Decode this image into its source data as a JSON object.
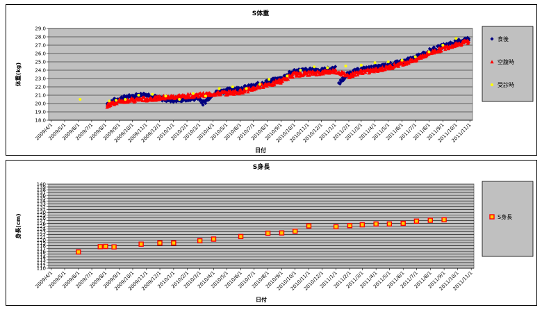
{
  "chart_data": [
    {
      "type": "scatter",
      "title": "S体重",
      "xlabel": "日付",
      "ylabel": "体重(kg)",
      "ylim": [
        18.0,
        29.0
      ],
      "yticks": [
        "18.0",
        "19.0",
        "20.0",
        "21.0",
        "22.0",
        "23.0",
        "24.0",
        "25.0",
        "26.0",
        "27.0",
        "28.0",
        "29.0"
      ],
      "xticks": [
        "2009/4/1",
        "2009/5/1",
        "2009/6/1",
        "2009/7/1",
        "2009/8/1",
        "2009/9/1",
        "2009/10/1",
        "2009/11/1",
        "2009/12/1",
        "2010/1/1",
        "2010/2/1",
        "2010/3/1",
        "2010/4/1",
        "2010/5/1",
        "2010/6/1",
        "2010/7/1",
        "2010/8/1",
        "2010/9/1",
        "2010/10/1",
        "2010/11/1",
        "2010/12/1",
        "2011/1/1",
        "2011/2/1",
        "2011/3/1",
        "2011/4/1",
        "2011/5/1",
        "2011/6/1",
        "2011/7/1",
        "2011/8/1",
        "2011/9/1",
        "2011/10/1",
        "2011/11/1"
      ],
      "grid": true,
      "legend_position": "right",
      "series": [
        {
          "name": "食後",
          "color": "#000080",
          "marker": "diamond",
          "trend": [
            [
              "2009-08-05",
              20.0
            ],
            [
              "2009-09-01",
              20.6
            ],
            [
              "2009-10-01",
              20.9
            ],
            [
              "2009-11-01",
              21.1
            ],
            [
              "2009-12-01",
              20.6
            ],
            [
              "2010-01-01",
              20.4
            ],
            [
              "2010-02-01",
              20.5
            ],
            [
              "2010-03-01",
              20.7
            ],
            [
              "2010-03-10",
              20.0
            ],
            [
              "2010-04-01",
              21.2
            ],
            [
              "2010-05-01",
              21.6
            ],
            [
              "2010-06-01",
              21.8
            ],
            [
              "2010-07-01",
              22.1
            ],
            [
              "2010-08-01",
              22.6
            ],
            [
              "2010-09-01",
              23.0
            ],
            [
              "2010-10-01",
              23.9
            ],
            [
              "2010-11-01",
              24.0
            ],
            [
              "2010-12-01",
              24.0
            ],
            [
              "2011-01-01",
              24.2
            ],
            [
              "2011-01-10",
              22.5
            ],
            [
              "2011-02-01",
              23.6
            ],
            [
              "2011-03-01",
              24.1
            ],
            [
              "2011-04-01",
              24.3
            ],
            [
              "2011-05-01",
              24.6
            ],
            [
              "2011-06-01",
              25.0
            ],
            [
              "2011-07-01",
              25.5
            ],
            [
              "2011-08-01",
              26.3
            ],
            [
              "2011-09-01",
              26.9
            ],
            [
              "2011-10-01",
              27.4
            ],
            [
              "2011-10-31",
              27.8
            ]
          ]
        },
        {
          "name": "空腹時",
          "color": "#ff0000",
          "marker": "triangle",
          "trend": [
            [
              "2009-08-05",
              19.8
            ],
            [
              "2009-09-01",
              20.3
            ],
            [
              "2010-06-01",
              21.4
            ],
            [
              "2010-07-01",
              21.8
            ],
            [
              "2010-08-01",
              22.3
            ],
            [
              "2010-09-01",
              22.7
            ],
            [
              "2010-10-01",
              23.5
            ],
            [
              "2010-11-01",
              23.6
            ],
            [
              "2010-12-01",
              23.7
            ],
            [
              "2011-01-01",
              23.9
            ],
            [
              "2011-02-01",
              23.3
            ],
            [
              "2011-03-01",
              23.8
            ],
            [
              "2011-04-01",
              24.0
            ],
            [
              "2011-05-01",
              24.3
            ],
            [
              "2011-06-01",
              24.8
            ],
            [
              "2011-07-01",
              25.3
            ],
            [
              "2011-08-01",
              26.0
            ],
            [
              "2011-09-01",
              26.6
            ],
            [
              "2011-10-01",
              27.1
            ],
            [
              "2011-10-31",
              27.5
            ]
          ]
        },
        {
          "name": "受診時",
          "color": "#ffff00",
          "marker": "circle",
          "points": [
            [
              "2009-06-05",
              20.5
            ],
            [
              "2009-08-10",
              20.3
            ],
            [
              "2009-08-25",
              20.4
            ],
            [
              "2009-09-15",
              20.5
            ],
            [
              "2009-10-15",
              21.0
            ],
            [
              "2009-11-15",
              21.1
            ],
            [
              "2009-12-15",
              20.9
            ],
            [
              "2010-01-15",
              20.5
            ],
            [
              "2010-02-15",
              21.2
            ],
            [
              "2010-03-15",
              20.9
            ],
            [
              "2010-04-15",
              21.8
            ],
            [
              "2010-05-15",
              22.0
            ],
            [
              "2010-06-15",
              21.8
            ],
            [
              "2010-07-15",
              22.3
            ],
            [
              "2010-08-05",
              22.9
            ],
            [
              "2010-09-15",
              23.3
            ],
            [
              "2010-10-15",
              24.0
            ],
            [
              "2010-11-15",
              24.4
            ],
            [
              "2010-12-15",
              24.3
            ],
            [
              "2011-01-25",
              24.5
            ],
            [
              "2011-03-01",
              24.6
            ],
            [
              "2011-04-01",
              24.9
            ],
            [
              "2011-05-01",
              25.0
            ],
            [
              "2011-06-01",
              25.2
            ],
            [
              "2011-07-01",
              25.6
            ],
            [
              "2011-08-01",
              26.2
            ],
            [
              "2011-09-01",
              27.0
            ],
            [
              "2011-10-01",
              27.8
            ]
          ]
        }
      ]
    },
    {
      "type": "scatter",
      "title": "S身長",
      "xlabel": "日付",
      "ylabel": "身長(cm)",
      "ylim": [
        110,
        140
      ],
      "yticks": [
        "110",
        "111",
        "112",
        "113",
        "114",
        "115",
        "116",
        "117",
        "118",
        "119",
        "120",
        "121",
        "122",
        "123",
        "124",
        "125",
        "126",
        "127",
        "128",
        "129",
        "130",
        "131",
        "132",
        "133",
        "134",
        "135",
        "136",
        "137",
        "138",
        "139",
        "140"
      ],
      "xticks": [
        "2009/4/1",
        "2009/5/1",
        "2009/6/1",
        "2009/7/1",
        "2009/8/1",
        "2009/9/1",
        "2009/10/1",
        "2009/11/1",
        "2009/12/1",
        "2010/1/1",
        "2010/2/1",
        "2010/3/1",
        "2010/4/1",
        "2010/5/1",
        "2010/6/1",
        "2010/7/1",
        "2010/8/1",
        "2010/9/1",
        "2010/10/1",
        "2010/11/1",
        "2010/12/1",
        "2011/1/1",
        "2011/2/1",
        "2011/3/1",
        "2011/4/1",
        "2011/5/1",
        "2011/6/1",
        "2011/7/1",
        "2011/8/1",
        "2011/9/1",
        "2011/10/1",
        "2011/11/1"
      ],
      "grid": true,
      "legend_position": "right",
      "series": [
        {
          "name": "S身長",
          "color": "#ff0000",
          "fill": "#ffcc00",
          "marker": "square",
          "points": [
            [
              "2009-06-01",
              115.8
            ],
            [
              "2009-07-20",
              117.7
            ],
            [
              "2009-08-01",
              117.8
            ],
            [
              "2009-08-20",
              117.6
            ],
            [
              "2009-10-20",
              118.6
            ],
            [
              "2009-12-01",
              119.0
            ],
            [
              "2010-01-01",
              119.0
            ],
            [
              "2010-03-01",
              119.8
            ],
            [
              "2010-04-01",
              120.4
            ],
            [
              "2010-06-01",
              121.3
            ],
            [
              "2010-08-01",
              122.5
            ],
            [
              "2010-09-01",
              122.6
            ],
            [
              "2010-10-01",
              123.2
            ],
            [
              "2010-11-01",
              125.1
            ],
            [
              "2011-01-01",
              124.8
            ],
            [
              "2011-02-01",
              125.2
            ],
            [
              "2011-03-01",
              125.5
            ],
            [
              "2011-04-01",
              125.8
            ],
            [
              "2011-05-01",
              125.8
            ],
            [
              "2011-06-01",
              126.0
            ],
            [
              "2011-07-01",
              126.8
            ],
            [
              "2011-08-01",
              127.1
            ],
            [
              "2011-09-01",
              127.3
            ]
          ]
        }
      ]
    }
  ]
}
